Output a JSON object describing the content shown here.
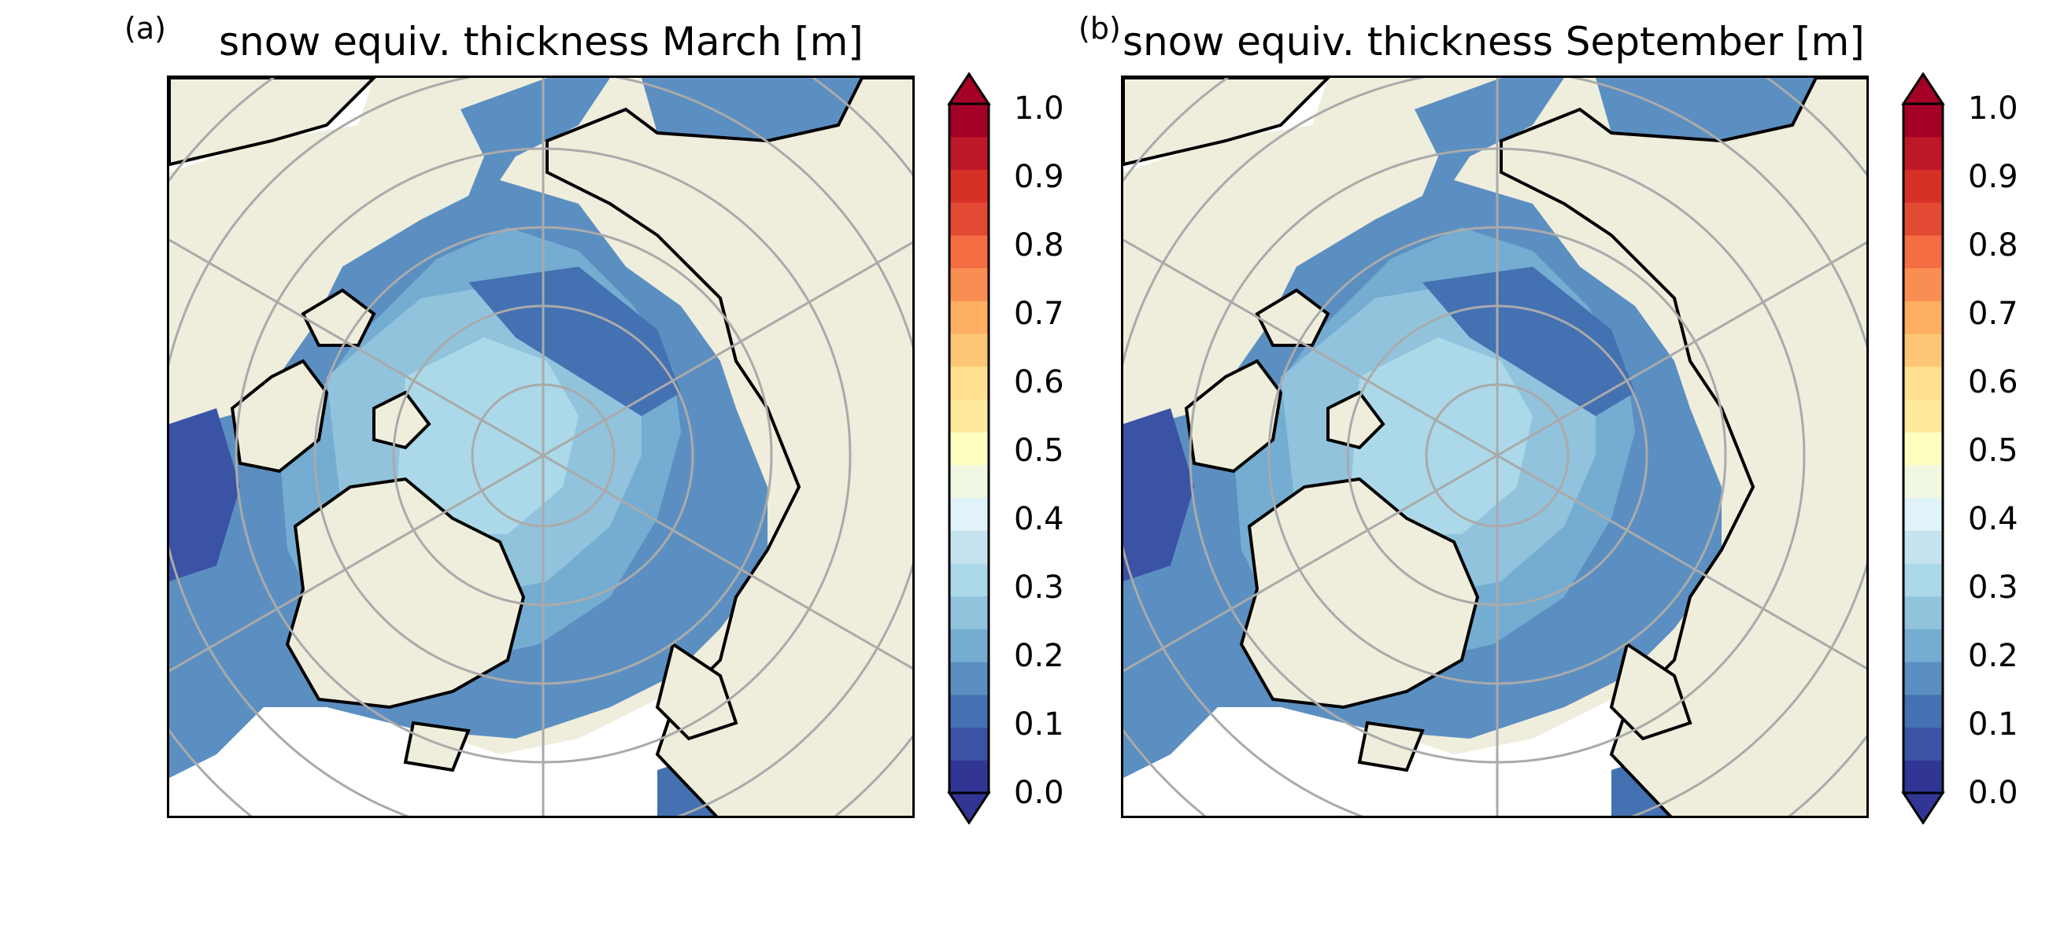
{
  "panels": [
    {
      "label": "(a)",
      "title": "snow equiv. thickness March [m]",
      "colorbar": {
        "ticks": [
          "1.0",
          "0.9",
          "0.8",
          "0.7",
          "0.6",
          "0.5",
          "0.4",
          "0.3",
          "0.2",
          "0.1",
          "0.0"
        ]
      }
    },
    {
      "label": "(b)",
      "title": "snow equiv. thickness September [m]",
      "colorbar": {
        "ticks": [
          "1.0",
          "0.9",
          "0.8",
          "0.7",
          "0.6",
          "0.5",
          "0.4",
          "0.3",
          "0.2",
          "0.1",
          "0.0"
        ]
      }
    }
  ],
  "colors": {
    "land": "#efeddc",
    "ocean_no_data": "#ffffff",
    "colormap": [
      "#313695",
      "#3b53a4",
      "#4471b2",
      "#5b8fc1",
      "#74add1",
      "#91c3dd",
      "#abd9e9",
      "#c6e4ef",
      "#e0f3f8",
      "#f0f8e2",
      "#ffffbf",
      "#fee99c",
      "#fee090",
      "#fdc676",
      "#fdae61",
      "#f98e52",
      "#f46d43",
      "#e34a33",
      "#d73027",
      "#bd1828",
      "#a50026"
    ]
  }
}
